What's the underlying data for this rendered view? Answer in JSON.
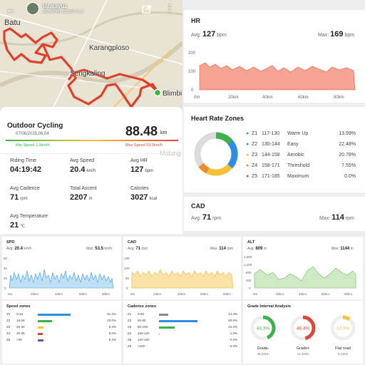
{
  "map": {
    "user": "tatajayuz",
    "device": "IGPSPORT iGS630 V1.11",
    "labels": [
      "Batu",
      "Karangploso",
      "Sengkaling",
      "Blimbi",
      "Malang"
    ]
  },
  "summary": {
    "title": "Outdoor Cycling",
    "date": "07/06/2025,06:04",
    "distance": "88.48",
    "distance_unit": "km",
    "min_speed": "Min Speed 1.3km/h",
    "max_speed": "Max Speed 53.5km/h",
    "stats": [
      {
        "label": "Riding Time",
        "value": "04:19:42",
        "unit": ""
      },
      {
        "label": "Avg Speed",
        "value": "20.4",
        "unit": "km/h"
      },
      {
        "label": "Avg HR",
        "value": "127",
        "unit": "bpm"
      },
      {
        "label": "Avg Cadence",
        "value": "71",
        "unit": "rpm"
      },
      {
        "label": "Total Ascent",
        "value": "2207",
        "unit": "m"
      },
      {
        "label": "Calories",
        "value": "3027",
        "unit": "kcal"
      },
      {
        "label": "Avg Temperature",
        "value": "21",
        "unit": "℃"
      }
    ]
  },
  "hr": {
    "title": "HR",
    "avg_label": "Avg:",
    "avg": "127",
    "avg_unit": "bpm",
    "max_label": "Max:",
    "max": "169",
    "max_unit": "bpm",
    "yticks": [
      "200",
      "100",
      "0"
    ],
    "xticks": [
      "0m",
      "20km",
      "40km",
      "60km",
      "80km"
    ]
  },
  "hrzones": {
    "title": "Heart Rate Zones",
    "zones": [
      {
        "z": "Z1",
        "range": "117-130",
        "name": "Warm Up",
        "pct": "13.99%",
        "value": 13.99,
        "color": "#3bb34a"
      },
      {
        "z": "Z2",
        "range": "130-144",
        "name": "Easy",
        "pct": "22.48%",
        "value": 22.48,
        "color": "#2b8ee0"
      },
      {
        "z": "Z3",
        "range": "144-158",
        "name": "Aerobic",
        "pct": "20.78%",
        "value": 20.78,
        "color": "#f7c23a"
      },
      {
        "z": "Z4",
        "range": "158-171",
        "name": "Threshold",
        "pct": "7.55%",
        "value": 7.55,
        "color": "#f08a2c"
      },
      {
        "z": "Z5",
        "range": "171-185",
        "name": "Maximum",
        "pct": "0.0%",
        "value": 0.0,
        "color": "#e0473a"
      }
    ]
  },
  "cad": {
    "title": "CAD",
    "avg_label": "Avg:",
    "avg": "71",
    "avg_unit": "rpm",
    "max_label": "Max:",
    "max": "114",
    "max_unit": "rpm"
  },
  "spd": {
    "title": "SPD",
    "avg_label": "Avg:",
    "avg": "20.4",
    "avg_unit": "km/h",
    "max_label": "Max:",
    "max": "53.5",
    "max_unit": "km/h",
    "yticks": [
      "60",
      "40",
      "20",
      "0"
    ],
    "xticks": [
      "0m",
      "20km",
      "40km",
      "60km",
      "80km"
    ]
  },
  "cad_mini": {
    "title": "CAD",
    "avg_label": "Avg:",
    "avg": "71",
    "avg_unit": "rpm",
    "max_label": "Max:",
    "max": "114",
    "max_unit": "rpm",
    "yticks": [
      "150",
      "100",
      "50",
      "0"
    ],
    "xticks": [
      "0m",
      "20km",
      "40km",
      "60km",
      "80km"
    ]
  },
  "alt": {
    "title": "ALT",
    "avg_label": "Avg:",
    "avg": "809",
    "avg_unit": "m",
    "max_label": "Max:",
    "max": "1144",
    "max_unit": "m",
    "yticks": [
      "1,600",
      "1,200",
      "800",
      "400",
      "0"
    ],
    "xticks": [
      "0m",
      "20km",
      "40km",
      "60km",
      "80km"
    ]
  },
  "speed_zones": {
    "title": "Speed zones",
    "rows": [
      {
        "z": "Z1",
        "range": "0-18",
        "pct": "51.2%",
        "value": 51.2,
        "color": "#2b8ee0"
      },
      {
        "z": "Z2",
        "range": "18-26",
        "pct": "22.0%",
        "value": 22.0,
        "color": "#3bb34a"
      },
      {
        "z": "Z3",
        "range": "26-30",
        "pct": "9.4%",
        "value": 9.4,
        "color": "#f7c23a"
      },
      {
        "z": "Z4",
        "range": "30-35",
        "pct": "8.0%",
        "value": 8.0,
        "color": "#e0473a"
      },
      {
        "z": "Z5",
        "range": ">35",
        "pct": "9.2%",
        "value": 9.2,
        "color": "#8e44ad"
      }
    ]
  },
  "cadence_zones": {
    "title": "Cadence zones",
    "rows": [
      {
        "z": "Z1",
        "range": "0-60",
        "pct": "14.4%",
        "value": 14.4,
        "color": "#888888"
      },
      {
        "z": "Z2",
        "range": "60-80",
        "pct": "60.0%",
        "value": 60.0,
        "color": "#2b8ee0"
      },
      {
        "z": "Z3",
        "range": "80-100",
        "pct": "24.4%",
        "value": 24.4,
        "color": "#3bb34a"
      },
      {
        "z": "Z4",
        "range": "100-120",
        "pct": "1.0%",
        "value": 1.0,
        "color": "#f7c23a"
      },
      {
        "z": "Z5",
        "range": "120-160",
        "pct": "0.0%",
        "value": 0.0,
        "color": "#f08a2c"
      },
      {
        "z": "Z6",
        "range": ">160",
        "pct": "0.0%",
        "value": 0.0,
        "color": "#e0473a"
      }
    ]
  },
  "grade": {
    "title": "Grade Interval Analysis",
    "items": [
      {
        "pct": "43.3%",
        "value": 43.3,
        "label": "Grade-",
        "dist": "38.33km",
        "color": "#3bb34a"
      },
      {
        "pct": "46.4%",
        "value": 46.4,
        "label": "Grade+",
        "dist": "41.02km",
        "color": "#e0473a"
      },
      {
        "pct": "10.3%",
        "value": 10.3,
        "label": "Flat road",
        "dist": "9.12km",
        "color": "#f7c23a"
      }
    ]
  }
}
